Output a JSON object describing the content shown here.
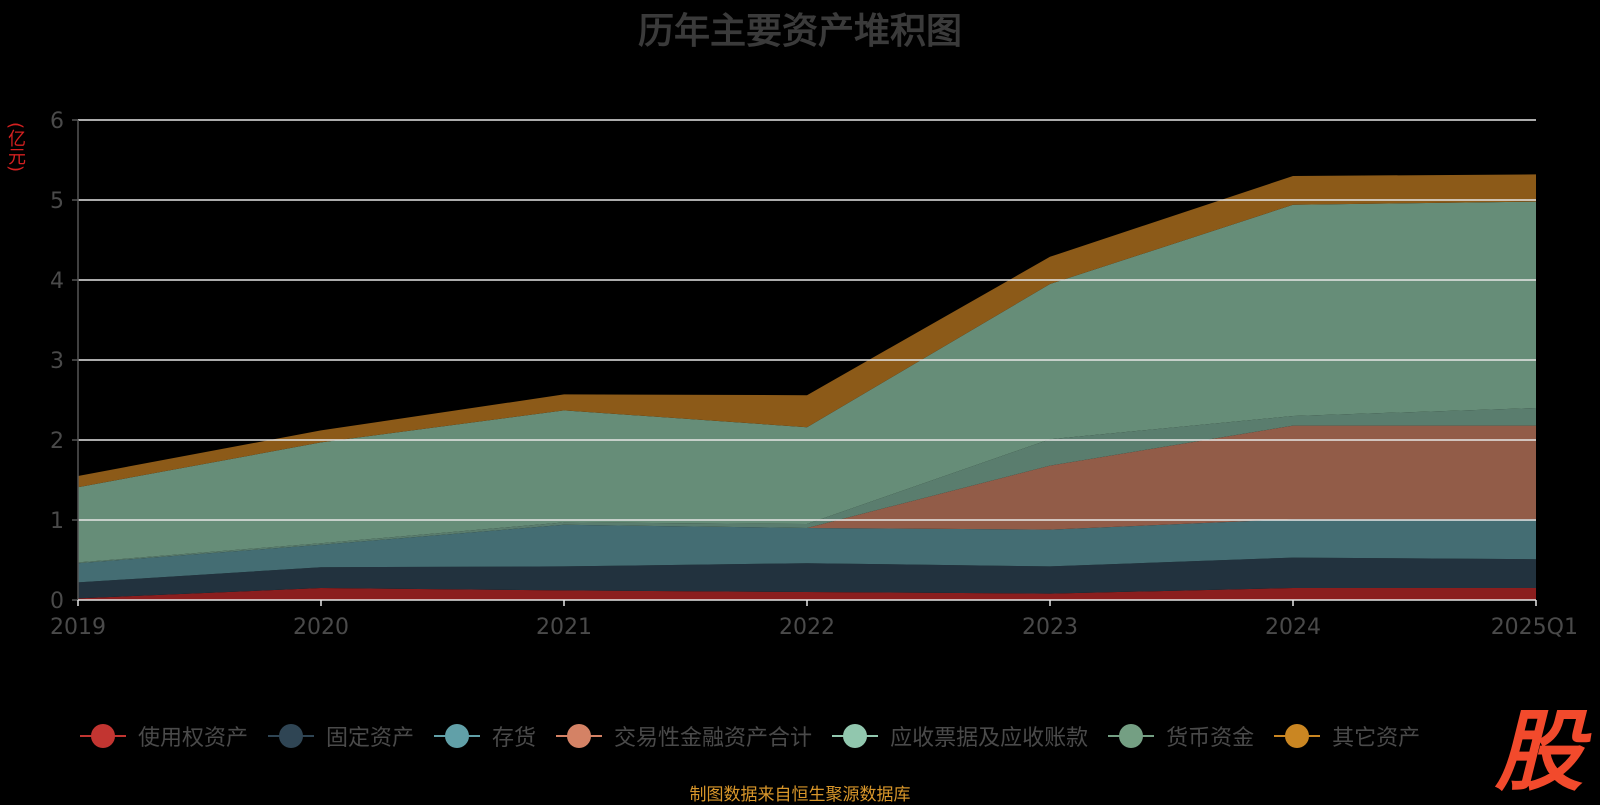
{
  "chart_data": {
    "type": "area",
    "stacked": true,
    "title": "历年主要资产堆积图",
    "unit_label": "(亿元)",
    "categories": [
      "2019",
      "2020",
      "2021",
      "2022",
      "2023",
      "2024",
      "2025Q1"
    ],
    "ylim": [
      0,
      6
    ],
    "yticks": [
      0,
      1,
      2,
      3,
      4,
      5,
      6
    ],
    "grid": true,
    "legend_position": "bottom",
    "series": [
      {
        "name": "使用权资产",
        "color": "#c23531",
        "area_color": "#8b1e1e",
        "values": [
          0.02,
          0.15,
          0.12,
          0.1,
          0.08,
          0.15,
          0.15
        ]
      },
      {
        "name": "固定资产",
        "color": "#2f4554",
        "area_color": "#22323e",
        "values": [
          0.2,
          0.26,
          0.3,
          0.36,
          0.34,
          0.38,
          0.36
        ]
      },
      {
        "name": "存货",
        "color": "#61a0a8",
        "area_color": "#446d73",
        "values": [
          0.24,
          0.28,
          0.52,
          0.44,
          0.46,
          0.48,
          0.5
        ]
      },
      {
        "name": "交易性金融资产合计",
        "color": "#d48265",
        "area_color": "#925c48",
        "values": [
          0,
          0,
          0,
          0,
          0.8,
          1.17,
          1.17
        ]
      },
      {
        "name": "应收票据及应收账款",
        "color": "#91c7ae",
        "area_color": "#5a7d6e",
        "values": [
          0.01,
          0.02,
          0.03,
          0.05,
          0.33,
          0.12,
          0.22
        ]
      },
      {
        "name": "货币资金",
        "color": "#749f83",
        "area_color": "#668d78",
        "values": [
          0.94,
          1.26,
          1.4,
          1.21,
          1.94,
          2.64,
          2.58
        ]
      },
      {
        "name": "其它资产",
        "color": "#ca8622",
        "area_color": "#8c5a18",
        "values": [
          0.14,
          0.15,
          0.2,
          0.4,
          0.34,
          0.36,
          0.34
        ]
      }
    ]
  },
  "source_note": "制图数据来自恒生聚源数据库",
  "logo_text": "股"
}
